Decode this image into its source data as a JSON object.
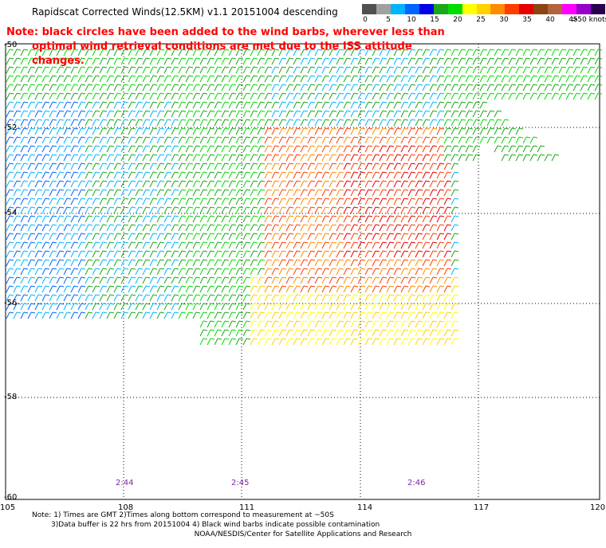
{
  "title": "Rapidscat Corrected Winds(12.5KM) v1.1 20151004 descending",
  "note": {
    "line1": "Note: black circles have been added to the wind barbs, wherever less than",
    "line2": "optimal wind retrieval conditions are met due to the ISS attitude changes."
  },
  "colorbar": {
    "colors": [
      "#505050",
      "#a0a0a0",
      "#00b4ff",
      "#0064ff",
      "#0000e6",
      "#1aa81a",
      "#00dc00",
      "#ffff00",
      "#ffd200",
      "#ff8c00",
      "#ff3c00",
      "#e60000",
      "#8b4513",
      "#b4643c",
      "#ff00ff",
      "#9600c8",
      "#280050"
    ],
    "labels": [
      "0",
      "5",
      "10",
      "15",
      "20",
      "25",
      "30",
      "35",
      "40",
      "45",
      ">50 knots"
    ]
  },
  "map": {
    "lon_ticks": [
      "105",
      "108",
      "111",
      "114",
      "117",
      "120"
    ],
    "lat_ticks": [
      "-50",
      "-52",
      "-54",
      "-56",
      "-58",
      "-60"
    ],
    "times": [
      "2:44",
      "2:45",
      "2:46"
    ]
  },
  "footer": {
    "line1": "Note: 1) Times are GMT 2)Times along bottom correspond to measurement at ~50S",
    "line2": "3)Data buffer is 22 hrs from 20151004 4) Black wind barbs indicate possible contamination",
    "credit": "NOAA/NESDIS/Center for Satellite Applications and Research"
  }
}
